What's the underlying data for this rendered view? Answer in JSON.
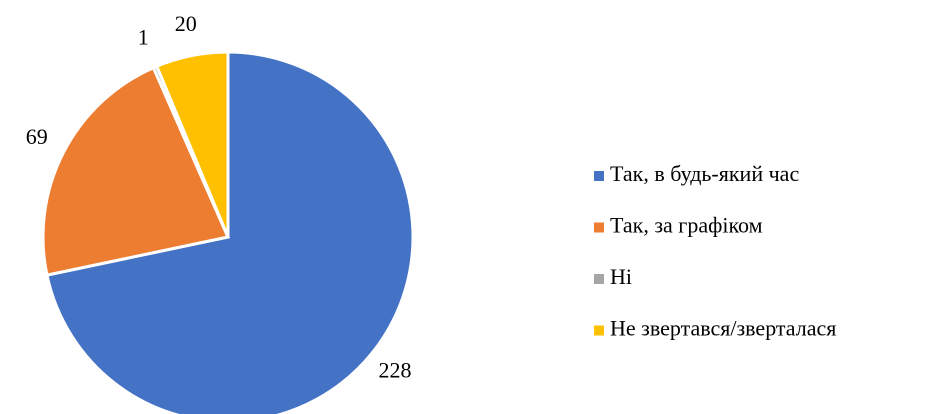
{
  "chart_data": {
    "type": "pie",
    "categories": [
      "Так, в будь-який час",
      "Так, за графіком",
      "Ні",
      "Не звертався/зверталася"
    ],
    "values": [
      228,
      69,
      1,
      20
    ],
    "colors": [
      "#4472c4",
      "#ed7d31",
      "#a5a5a5",
      "#ffc000"
    ],
    "legend": "right"
  }
}
